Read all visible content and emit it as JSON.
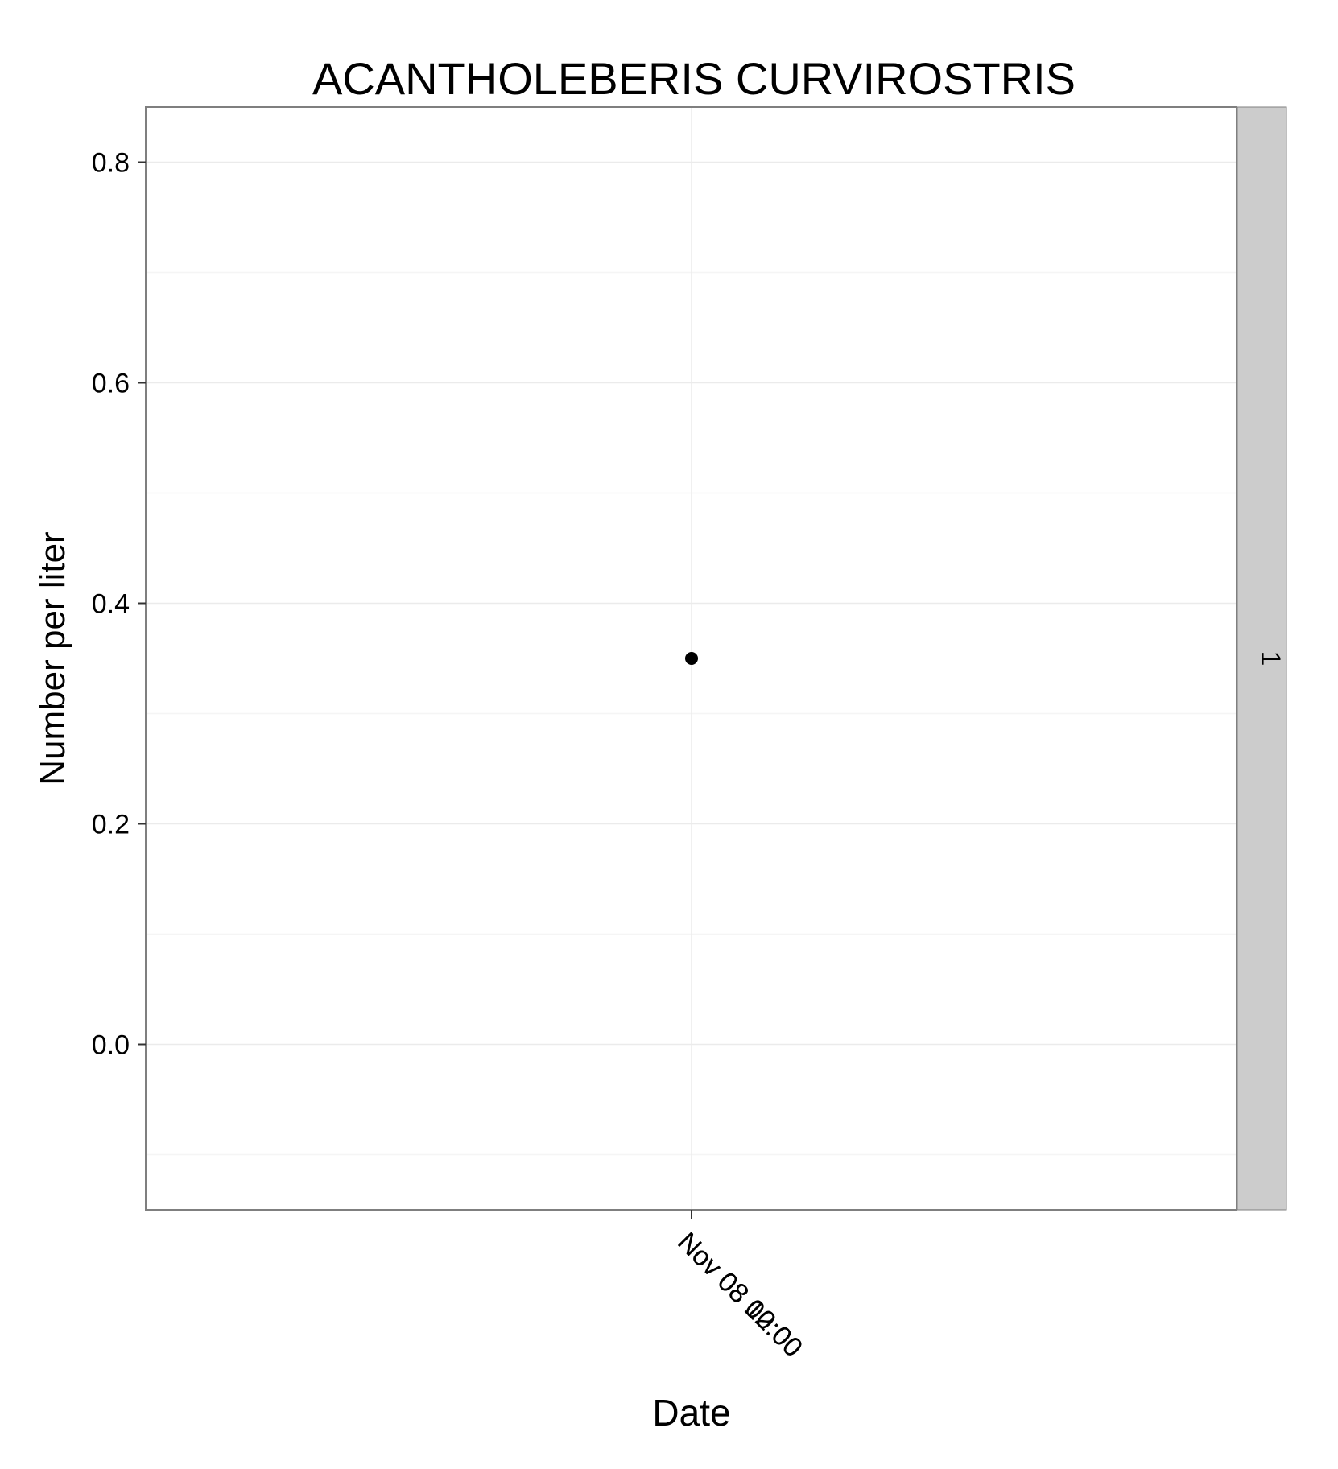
{
  "chart_data": {
    "type": "scatter",
    "title": "ACANTHOLEBERIS CURVIROSTRIS",
    "xlabel": "Date",
    "ylabel": "Number per liter",
    "facet_label": "1",
    "x_tick_labels": [
      "Nov 08 00:00",
      "Nov 08 12:00"
    ],
    "y_ticks": [
      0.0,
      0.2,
      0.4,
      0.6,
      0.8
    ],
    "y_tick_labels": [
      "0.0",
      "0.2",
      "0.4",
      "0.6",
      "0.8"
    ],
    "ylim": [
      -0.15,
      0.85
    ],
    "grid": true,
    "legend": "none",
    "points": [
      {
        "x": "Nov 08",
        "y": 0.35
      }
    ],
    "colors": {
      "point": "#000000",
      "grid": "#ebebeb",
      "panel_border": "#7f7f7f",
      "strip": "#cccccc"
    }
  }
}
